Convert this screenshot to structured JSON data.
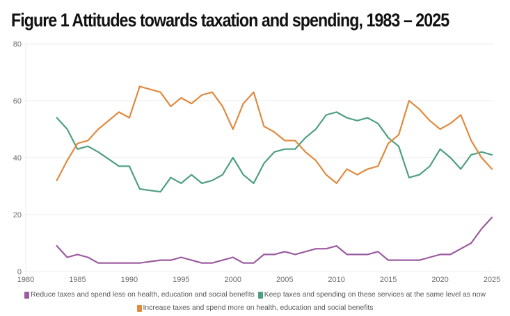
{
  "chart_data": {
    "type": "line",
    "title": "Figure 1 Attitudes towards taxation and spending, 1983 – 2025",
    "xlabel": "",
    "ylabel": "",
    "xlim": [
      1980,
      2025
    ],
    "ylim": [
      0,
      80
    ],
    "x_ticks": [
      "1980",
      "1985",
      "1990",
      "1995",
      "2000",
      "2005",
      "2010",
      "2015",
      "2020",
      "2025"
    ],
    "y_ticks": [
      "0",
      "20",
      "40",
      "60",
      "80"
    ],
    "grid": "horizontal",
    "legend_position": "bottom",
    "x": [
      1983,
      1984,
      1985,
      1986,
      1987,
      1989,
      1990,
      1991,
      1993,
      1994,
      1995,
      1996,
      1997,
      1998,
      1999,
      2000,
      2001,
      2002,
      2003,
      2004,
      2005,
      2006,
      2007,
      2008,
      2009,
      2010,
      2011,
      2012,
      2013,
      2014,
      2015,
      2016,
      2017,
      2018,
      2019,
      2020,
      2021,
      2022,
      2023,
      2024,
      2025
    ],
    "series": [
      {
        "name": "Reduce taxes and spend less on health, education and social benefits",
        "color": "#9b5ba0",
        "values": [
          9,
          5,
          6,
          5,
          3,
          3,
          3,
          3,
          4,
          4,
          5,
          4,
          3,
          3,
          4,
          5,
          3,
          3,
          6,
          6,
          7,
          6,
          7,
          8,
          8,
          9,
          6,
          6,
          6,
          7,
          4,
          4,
          4,
          4,
          5,
          6,
          6,
          8,
          10,
          15,
          19
        ]
      },
      {
        "name": "Keep taxes and spending on these services at the same level as now",
        "color": "#4e9f82",
        "values": [
          54,
          50,
          43,
          44,
          42,
          37,
          37,
          29,
          28,
          33,
          31,
          34,
          31,
          32,
          34,
          40,
          34,
          31,
          38,
          42,
          43,
          43,
          47,
          50,
          55,
          56,
          54,
          53,
          54,
          52,
          47,
          44,
          33,
          34,
          37,
          43,
          40,
          36,
          41,
          42,
          41
        ]
      },
      {
        "name": "Increase taxes and spend more on health, education and social benefits",
        "color": "#e08a3e",
        "values": [
          32,
          39,
          45,
          46,
          50,
          56,
          54,
          65,
          63,
          58,
          61,
          59,
          62,
          63,
          58,
          50,
          59,
          63,
          51,
          49,
          46,
          46,
          42,
          39,
          34,
          31,
          36,
          34,
          36,
          37,
          45,
          48,
          60,
          57,
          53,
          50,
          52,
          55,
          46,
          40,
          36
        ]
      }
    ]
  },
  "legend": {
    "items": [
      {
        "label": "Reduce taxes and spend less on health, education and social benefits",
        "color": "#9b5ba0"
      },
      {
        "label": "Keep taxes and spending on these services at the same level as now",
        "color": "#4e9f82"
      },
      {
        "label": "Increase taxes and spend more on health, education and social benefits",
        "color": "#e08a3e"
      }
    ]
  },
  "colors": {
    "grid": "#ececec",
    "axis_text": "#6b6b6b",
    "title": "#111111"
  }
}
